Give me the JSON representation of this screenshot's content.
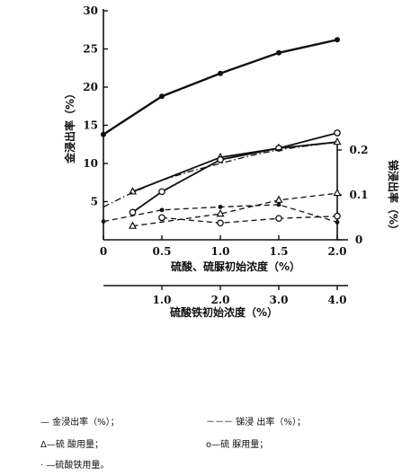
{
  "chart_data": {
    "type": "line",
    "xlabel_top": "硫酸、硫脲初始浓度（%）",
    "xlabel_bottom": "硫酸铁初始浓度（%）",
    "ylabel_left": "金浸出率（%）",
    "ylabel_right": "锑浸出率（%）",
    "x_top_ticks": [
      "0",
      "0.5",
      "1.0",
      "1.5",
      "2.0"
    ],
    "x_top_lim": [
      0,
      2.0
    ],
    "x_bottom_ticks": [
      "1.0",
      "2.0",
      "3.0",
      "4.0"
    ],
    "x_bottom_lim": [
      0,
      4.0
    ],
    "y_left_ticks": [
      "5",
      "10",
      "15",
      "20",
      "25",
      "30"
    ],
    "y_left_lim": [
      0,
      30
    ],
    "y_right_ticks": [
      "0",
      "0.1",
      "0.2"
    ],
    "y_right_lim": [
      0,
      0.2
    ],
    "series": [
      {
        "line": "solid",
        "marker": "dot",
        "axis": "left",
        "x": [
          0,
          0.5,
          1.0,
          1.5,
          2.0
        ],
        "y": [
          13.8,
          18.8,
          21.8,
          24.5,
          26.2
        ]
      },
      {
        "line": "solid",
        "marker": "triangle",
        "axis": "left",
        "x": [
          0.25,
          1.0,
          1.5,
          2.0
        ],
        "y": [
          6.3,
          10.8,
          12.0,
          12.8
        ]
      },
      {
        "line": "solid",
        "marker": "circle",
        "axis": "left",
        "x": [
          0.25,
          0.5,
          1.0,
          1.5,
          2.0
        ],
        "y": [
          3.6,
          6.3,
          10.5,
          12.0,
          14.0
        ]
      },
      {
        "line": "dashdot",
        "marker": "none",
        "axis": "left",
        "x": [
          0,
          0.25,
          0.5,
          0.75,
          1.0,
          1.25,
          1.5,
          1.75,
          2.0
        ],
        "y": [
          4.3,
          6.2,
          7.8,
          9.0,
          10.0,
          11.0,
          11.8,
          12.3,
          12.8
        ]
      },
      {
        "line": "dashed",
        "marker": "triangle",
        "axis": "left",
        "x": [
          0.25,
          1.0,
          1.5,
          2.0
        ],
        "y": [
          1.8,
          3.4,
          5.2,
          6.1
        ]
      },
      {
        "line": "dashed",
        "marker": "circle",
        "axis": "left",
        "x": [
          0.5,
          1.0,
          1.5,
          2.0
        ],
        "y": [
          2.9,
          2.2,
          2.8,
          3.1
        ]
      },
      {
        "line": "dashed",
        "marker": "dot",
        "axis": "left",
        "x": [
          0,
          0.5,
          1.0,
          1.5,
          2.0
        ],
        "y": [
          2.4,
          3.9,
          4.3,
          4.6,
          2.3
        ]
      }
    ]
  },
  "legend": {
    "gold_leach": "— 金浸出率（%）；",
    "sb_leach": "－－－ 锑浸 出率（%）；",
    "acid_use": "Δ—硫 酸用量；",
    "thiourea_use": "o—硫 脲用量；",
    "ferric_use": "· —硫酸铁用量。"
  }
}
